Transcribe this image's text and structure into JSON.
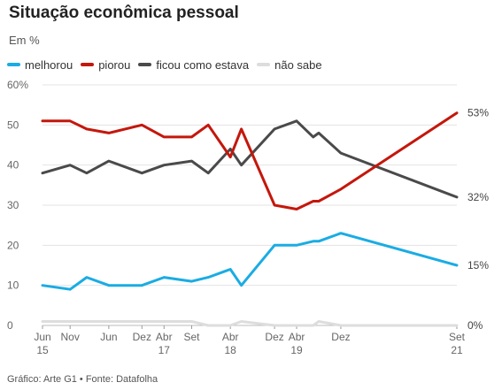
{
  "title": "Situação econômica pessoal",
  "subtitle": "Em %",
  "source": "Gráfico: Arte G1 • Fonte: Datafolha",
  "legend": [
    {
      "name": "melhorou",
      "color": "#1aace3"
    },
    {
      "name": "piorou",
      "color": "#c4170c"
    },
    {
      "name": "ficou como estava",
      "color": "#4a4a4a"
    },
    {
      "name": "não sabe",
      "color": "#dddddd"
    }
  ],
  "chart_data": {
    "type": "line",
    "ylim": [
      0,
      60
    ],
    "yticks": [
      "0",
      "10",
      "20",
      "30",
      "40",
      "50",
      "60%"
    ],
    "xticks": [
      {
        "t": 0,
        "label": "Jun",
        "sub": "15"
      },
      {
        "t": 5,
        "label": "Nov",
        "sub": ""
      },
      {
        "t": 12,
        "label": "Jun",
        "sub": ""
      },
      {
        "t": 18,
        "label": "Dez",
        "sub": ""
      },
      {
        "t": 22,
        "label": "Abr",
        "sub": "17"
      },
      {
        "t": 27,
        "label": "Set",
        "sub": ""
      },
      {
        "t": 34,
        "label": "Abr",
        "sub": "18"
      },
      {
        "t": 42,
        "label": "Dez",
        "sub": ""
      },
      {
        "t": 46,
        "label": "Abr",
        "sub": "19"
      },
      {
        "t": 54,
        "label": "Dez",
        "sub": ""
      },
      {
        "t": 75,
        "label": "Set",
        "sub": "21"
      }
    ],
    "xlim": [
      0,
      75
    ],
    "series": [
      {
        "name": "melhorou",
        "color": "#1aace3",
        "x": [
          0,
          5,
          8,
          12,
          18,
          22,
          27,
          30,
          34,
          36,
          42,
          46,
          49,
          50,
          54,
          75
        ],
        "y": [
          10,
          9,
          12,
          10,
          10,
          12,
          11,
          12,
          14,
          10,
          20,
          20,
          21,
          21,
          23,
          15
        ],
        "end_label": "15%"
      },
      {
        "name": "piorou",
        "color": "#c4170c",
        "x": [
          0,
          5,
          8,
          12,
          18,
          22,
          27,
          30,
          34,
          36,
          42,
          46,
          49,
          50,
          54,
          75
        ],
        "y": [
          51,
          51,
          49,
          48,
          50,
          47,
          47,
          50,
          42,
          49,
          30,
          29,
          31,
          31,
          34,
          53
        ],
        "end_label": "53%"
      },
      {
        "name": "ficou como estava",
        "color": "#4a4a4a",
        "x": [
          0,
          5,
          8,
          12,
          18,
          22,
          27,
          30,
          34,
          36,
          42,
          46,
          49,
          50,
          54,
          75
        ],
        "y": [
          38,
          40,
          38,
          41,
          38,
          40,
          41,
          38,
          44,
          40,
          49,
          51,
          47,
          48,
          43,
          32
        ],
        "end_label": "32%"
      },
      {
        "name": "não sabe",
        "color": "#dddddd",
        "x": [
          0,
          5,
          8,
          12,
          18,
          22,
          27,
          30,
          34,
          36,
          42,
          46,
          49,
          50,
          54,
          75
        ],
        "y": [
          1,
          1,
          1,
          1,
          1,
          1,
          1,
          0,
          0,
          1,
          0,
          0,
          0,
          1,
          0,
          0
        ],
        "end_label": "0%"
      }
    ]
  }
}
